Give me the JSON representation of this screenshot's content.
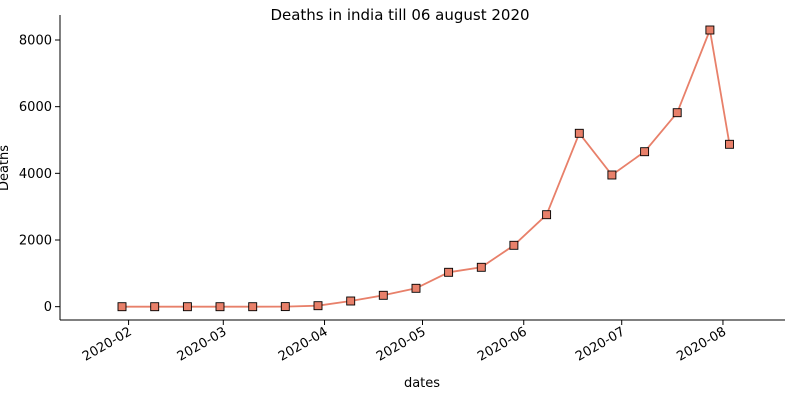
{
  "chart_data": {
    "type": "line",
    "title": "Deaths in india till 06 august 2020",
    "xlabel": "dates",
    "ylabel": "Deaths",
    "x_ticks": [
      "2020-02",
      "2020-03",
      "2020-04",
      "2020-05",
      "2020-06",
      "2020-07",
      "2020-08"
    ],
    "y_ticks": [
      "0",
      "2000",
      "4000",
      "6000",
      "8000"
    ],
    "xlim": [
      "2020-01-11",
      "2020-08-20"
    ],
    "ylim": [
      -400,
      8750
    ],
    "grid": false,
    "legend": "none",
    "series": [
      {
        "color": "#E8806A",
        "marker": "square",
        "points": [
          {
            "x": "2020-01-30",
            "y": 0
          },
          {
            "x": "2020-02-09",
            "y": 0
          },
          {
            "x": "2020-02-19",
            "y": 0
          },
          {
            "x": "2020-02-29",
            "y": 0
          },
          {
            "x": "2020-03-10",
            "y": 0
          },
          {
            "x": "2020-03-20",
            "y": 2
          },
          {
            "x": "2020-03-30",
            "y": 30
          },
          {
            "x": "2020-04-09",
            "y": 170
          },
          {
            "x": "2020-04-19",
            "y": 340
          },
          {
            "x": "2020-04-29",
            "y": 550
          },
          {
            "x": "2020-05-09",
            "y": 1030
          },
          {
            "x": "2020-05-19",
            "y": 1180
          },
          {
            "x": "2020-05-29",
            "y": 1840
          },
          {
            "x": "2020-06-08",
            "y": 2760
          },
          {
            "x": "2020-06-18",
            "y": 5200
          },
          {
            "x": "2020-06-28",
            "y": 3950
          },
          {
            "x": "2020-07-08",
            "y": 4650
          },
          {
            "x": "2020-07-18",
            "y": 5820
          },
          {
            "x": "2020-07-28",
            "y": 8300
          },
          {
            "x": "2020-08-03",
            "y": 4870
          }
        ]
      }
    ]
  }
}
